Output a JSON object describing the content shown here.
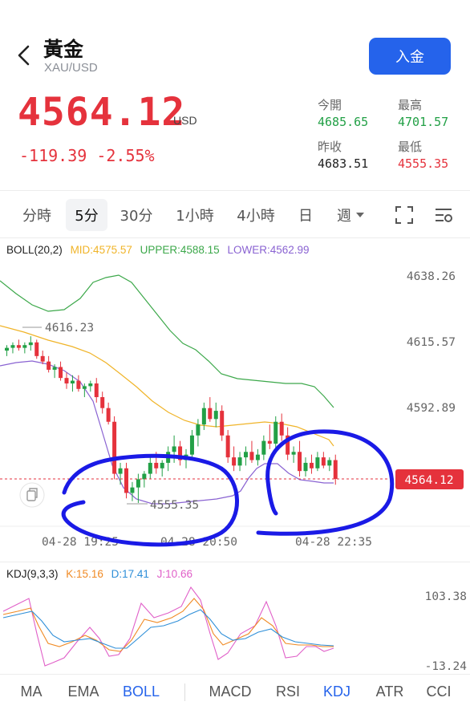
{
  "header": {
    "title": "黃金",
    "subtitle": "XAU/USD",
    "deposit_label": "入金"
  },
  "quote": {
    "price": "4564.12",
    "currency": "USD",
    "change": "-119.39",
    "change_pct": "-2.55%",
    "open_label": "今開",
    "open": "4685.65",
    "high_label": "最高",
    "high": "4701.57",
    "prev_close_label": "昨收",
    "prev_close": "4683.51",
    "low_label": "最低",
    "low": "4555.35"
  },
  "timeframes": [
    "分時",
    "5分",
    "30分",
    "1小時",
    "4小時",
    "日",
    "週"
  ],
  "active_timeframe": "5分",
  "boll": {
    "label": "BOLL(20,2)",
    "mid": "MID:4575.57",
    "upper": "UPPER:4588.15",
    "lower": "LOWER:4562.99",
    "colors": {
      "mid": "#f0b429",
      "upper": "#3ca84a",
      "lower": "#8a63d2"
    }
  },
  "kdj": {
    "label": "KDJ(9,3,3)",
    "k": "K:15.16",
    "d": "D:17.41",
    "j": "J:10.66",
    "colors": {
      "k": "#f08a24",
      "d": "#2f8fd8",
      "j": "#e05fc8"
    }
  },
  "chart_data": {
    "type": "candlestick",
    "y_axis_labels": [
      "4638.26",
      "4615.57",
      "4592.89"
    ],
    "ylim": [
      4548,
      4645
    ],
    "x_axis_labels": [
      "04-28 19:25",
      "04-28 20:50",
      "04-28 22:35"
    ],
    "current_price_label": "4564.12",
    "current_price": 4564.12,
    "annotations": {
      "high_marker": "4616.23",
      "low_marker": "4555.35"
    },
    "kdj_axis_labels": [
      "103.38",
      "-13.24"
    ],
    "candles": [
      [
        4611,
        4613,
        4609,
        4612
      ],
      [
        4612,
        4614,
        4610,
        4613
      ],
      [
        4613,
        4615,
        4611,
        4612
      ],
      [
        4612,
        4614,
        4610,
        4613
      ],
      [
        4613,
        4616.23,
        4611,
        4614
      ],
      [
        4614,
        4615,
        4608,
        4609
      ],
      [
        4609,
        4611,
        4606,
        4607
      ],
      [
        4607,
        4609,
        4603,
        4604
      ],
      [
        4604,
        4606,
        4601,
        4605
      ],
      [
        4605,
        4607,
        4600,
        4601
      ],
      [
        4601,
        4603,
        4597,
        4599
      ],
      [
        4599,
        4602,
        4596,
        4600
      ],
      [
        4600,
        4602,
        4596,
        4597
      ],
      [
        4597,
        4599,
        4594,
        4598
      ],
      [
        4598,
        4600,
        4596,
        4599
      ],
      [
        4599,
        4601,
        4592,
        4594
      ],
      [
        4594,
        4596,
        4588,
        4590
      ],
      [
        4590,
        4592,
        4584,
        4585
      ],
      [
        4585,
        4587,
        4564,
        4566
      ],
      [
        4566,
        4570,
        4562,
        4568
      ],
      [
        4568,
        4570,
        4557,
        4559
      ],
      [
        4559,
        4563,
        4556,
        4561
      ],
      [
        4561,
        4566,
        4555.35,
        4564
      ],
      [
        4564,
        4567,
        4561,
        4566
      ],
      [
        4566,
        4572,
        4564,
        4570
      ],
      [
        4570,
        4574,
        4566,
        4568
      ],
      [
        4568,
        4571,
        4565,
        4570
      ],
      [
        4570,
        4576,
        4567,
        4574
      ],
      [
        4574,
        4580,
        4570,
        4576
      ],
      [
        4576,
        4578,
        4569,
        4571
      ],
      [
        4571,
        4575,
        4568,
        4573
      ],
      [
        4573,
        4582,
        4571,
        4580
      ],
      [
        4580,
        4586,
        4576,
        4584
      ],
      [
        4584,
        4592,
        4582,
        4590
      ],
      [
        4590,
        4594,
        4585,
        4586
      ],
      [
        4586,
        4592,
        4583,
        4589
      ],
      [
        4589,
        4591,
        4578,
        4580
      ],
      [
        4580,
        4582,
        4570,
        4572
      ],
      [
        4572,
        4576,
        4567,
        4569
      ],
      [
        4569,
        4574,
        4567,
        4572
      ],
      [
        4572,
        4576,
        4569,
        4574
      ],
      [
        4574,
        4578,
        4570,
        4571
      ],
      [
        4571,
        4575,
        4569,
        4573
      ],
      [
        4573,
        4580,
        4571,
        4578
      ],
      [
        4578,
        4584,
        4575,
        4577
      ],
      [
        4577,
        4587,
        4575,
        4585
      ],
      [
        4585,
        4588,
        4578,
        4580
      ],
      [
        4580,
        4583,
        4571,
        4573
      ],
      [
        4573,
        4576,
        4570,
        4574
      ],
      [
        4574,
        4578,
        4565,
        4567
      ],
      [
        4567,
        4572,
        4565,
        4570
      ],
      [
        4570,
        4573,
        4566,
        4568
      ],
      [
        4568,
        4574,
        4567,
        4572
      ],
      [
        4572,
        4574,
        4568,
        4569
      ],
      [
        4569,
        4572,
        4567,
        4571
      ],
      [
        4571,
        4573,
        4562,
        4564.12
      ]
    ]
  },
  "indicator_tabs": {
    "main": [
      "MA",
      "EMA",
      "BOLL"
    ],
    "sub": [
      "MACD",
      "RSI",
      "KDJ",
      "ATR",
      "CCI"
    ],
    "active_main": "BOLL",
    "active_sub": "KDJ"
  }
}
